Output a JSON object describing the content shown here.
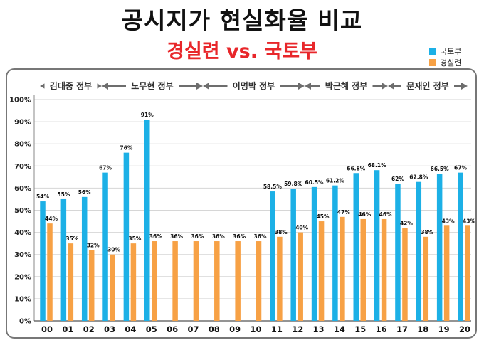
{
  "title": "공시지가 현실화율 비교",
  "subtitle": "경실련 vs. 국토부",
  "colors": {
    "molit": "#1cb0e6",
    "ccej": "#f7a145",
    "subtitle": "#e8262a"
  },
  "chart_data": {
    "type": "bar",
    "categories": [
      "00",
      "01",
      "02",
      "03",
      "04",
      "05",
      "06",
      "07",
      "08",
      "09",
      "10",
      "11",
      "12",
      "13",
      "14",
      "15",
      "16",
      "17",
      "18",
      "19",
      "20"
    ],
    "series": [
      {
        "name": "국토부",
        "values": [
          54,
          55,
          56,
          67,
          76,
          91,
          null,
          null,
          null,
          null,
          null,
          58.5,
          59.8,
          60.5,
          61.2,
          66.8,
          68.1,
          62,
          62.8,
          66.5,
          67
        ],
        "labels": [
          "54%",
          "55%",
          "56%",
          "67%",
          "76%",
          "91%",
          "",
          "",
          "",
          "",
          "",
          "58.5%",
          "59.8%",
          "60.5%",
          "61.2%",
          "66.8%",
          "68.1%",
          "62%",
          "62.8%",
          "66.5%",
          "67%"
        ]
      },
      {
        "name": "경실련",
        "values": [
          44,
          35,
          32,
          30,
          35,
          36,
          36,
          36,
          36,
          36,
          36,
          38,
          40,
          45,
          47,
          46,
          46,
          42,
          38,
          43,
          43
        ],
        "labels": [
          "44%",
          "35%",
          "32%",
          "30%",
          "35%",
          "36%",
          "36%",
          "36%",
          "36%",
          "36%",
          "36%",
          "38%",
          "40%",
          "45%",
          "47%",
          "46%",
          "46%",
          "42%",
          "38%",
          "43%",
          "43%"
        ]
      }
    ],
    "ylim": [
      0,
      100
    ],
    "yticks": [
      0,
      10,
      20,
      30,
      40,
      50,
      60,
      70,
      80,
      90,
      100
    ],
    "ytick_labels": [
      "0%",
      "10%",
      "20%",
      "30%",
      "40%",
      "50%",
      "60%",
      "70%",
      "80%",
      "90%",
      "100%"
    ],
    "grid": true,
    "legend": "top-right",
    "eras": [
      {
        "label": "김대중 정부",
        "from": "00",
        "to": "02"
      },
      {
        "label": "노무현 정부",
        "from": "03",
        "to": "07"
      },
      {
        "label": "이명박 정부",
        "from": "08",
        "to": "12"
      },
      {
        "label": "박근혜 정부",
        "from": "13",
        "to": "16"
      },
      {
        "label": "문재인 정부",
        "from": "17",
        "to": "20"
      }
    ]
  }
}
